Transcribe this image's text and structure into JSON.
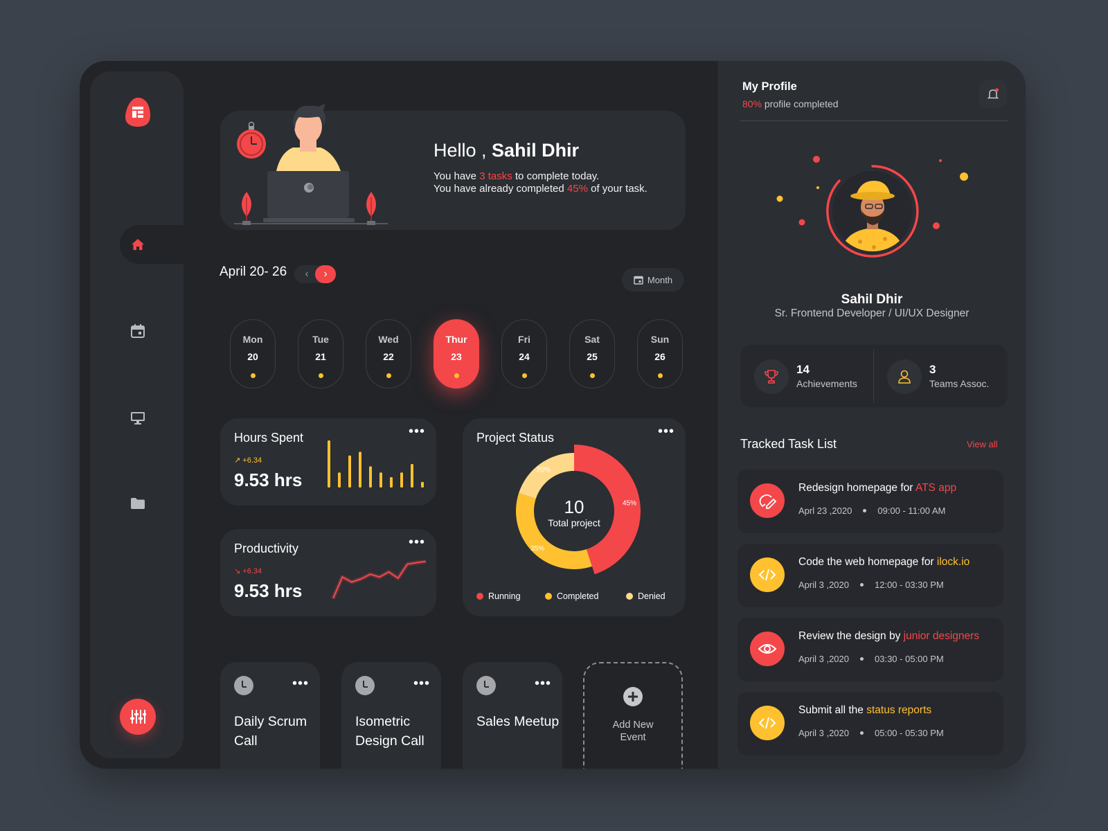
{
  "colors": {
    "accent": "#f4474a",
    "secondary": "#ffc130",
    "tertiary": "#ffd98a",
    "panel": "#2b2e33",
    "background": "#222428"
  },
  "sidebar": {
    "logo": "dashboard-logo",
    "items": [
      {
        "icon": "home-icon",
        "active": true
      },
      {
        "icon": "calendar-icon",
        "active": false
      },
      {
        "icon": "monitor-icon",
        "active": false
      },
      {
        "icon": "folder-icon",
        "active": false
      }
    ],
    "action_icon": "sliders-icon"
  },
  "hero": {
    "hello": "Hello ,",
    "name": "Sahil Dhir",
    "line1_pre": "You have ",
    "line1_accent": "3 tasks",
    "line1_post": " to complete today.",
    "line2_pre": "You have already completed ",
    "line2_accent": "45%",
    "line2_post": " of your task."
  },
  "week": {
    "label": "April 20- 26",
    "prev": "‹",
    "next": "›",
    "view_button": "Month",
    "days": [
      {
        "name": "Mon",
        "date": "20"
      },
      {
        "name": "Tue",
        "date": "21"
      },
      {
        "name": "Wed",
        "date": "22"
      },
      {
        "name": "Thur",
        "date": "23",
        "active": true
      },
      {
        "name": "Fri",
        "date": "24"
      },
      {
        "name": "Sat",
        "date": "25"
      },
      {
        "name": "Sun",
        "date": "26"
      }
    ]
  },
  "hours_spent": {
    "title": "Hours Spent",
    "trend": "+6.34",
    "value": "9.53 hrs",
    "more": "•••",
    "bars": [
      1.0,
      0.32,
      0.68,
      0.76,
      0.45,
      0.32,
      0.22,
      0.32,
      0.5,
      0.12
    ]
  },
  "productivity": {
    "title": "Productivity",
    "trend": "+6.34",
    "value": "9.53 hrs",
    "more": "•••",
    "line": [
      0.0,
      0.55,
      0.42,
      0.5,
      0.62,
      0.55,
      0.68,
      0.52,
      0.88,
      0.92,
      0.95
    ]
  },
  "project_status": {
    "title": "Project Status",
    "more": "•••",
    "total": "10",
    "total_label": "Total project",
    "segments": [
      {
        "name": "Running",
        "percent": 45,
        "label": "45%",
        "color": "#f4474a"
      },
      {
        "name": "Completed",
        "percent": 35,
        "label": "35%",
        "color": "#ffc130"
      },
      {
        "name": "Denied",
        "percent": 20,
        "label": "20%",
        "color": "#ffd98a"
      }
    ]
  },
  "events": [
    {
      "title": "Daily Scrum Call",
      "more": "•••"
    },
    {
      "title": "Isometric Design Call",
      "more": "•••"
    },
    {
      "title": "Sales Meetup",
      "more": "•••"
    }
  ],
  "add_event": {
    "label": "Add New Event"
  },
  "profile": {
    "title": "My Profile",
    "completed_percent": "80%",
    "completed_text": " profile completed",
    "name": "Sahil Dhir",
    "role": "Sr. Frontend Developer / UI/UX Designer",
    "achievements": {
      "count": "14",
      "label": "Achievements"
    },
    "teams": {
      "count": "3",
      "label": "Teams Assoc."
    }
  },
  "tasks": {
    "title": "Tracked Task List",
    "view_all": "View all",
    "items": [
      {
        "title_pre": "Redesign homepage for ",
        "title_accent": "ATS  app",
        "date": "Aprl 23 ,2020",
        "time": "09:00 - 11:00 AM",
        "icon": "design-tool-icon",
        "color": "red"
      },
      {
        "title_pre": "Code the web homepage for ",
        "title_accent": "ilock.io",
        "date": "April 3 ,2020",
        "time": "12:00 - 03:30 PM",
        "icon": "code-icon",
        "color": "yellow"
      },
      {
        "title_pre": "Review the design by ",
        "title_accent": "junior designers",
        "date": "April 3 ,2020",
        "time": "03:30 - 05:00 PM",
        "icon": "eye-icon",
        "color": "red"
      },
      {
        "title_pre": "Submit all the ",
        "title_accent": "status reports",
        "date": "April 3 ,2020",
        "time": "05:00 - 05:30 PM",
        "icon": "code-icon",
        "color": "yellow"
      }
    ]
  }
}
